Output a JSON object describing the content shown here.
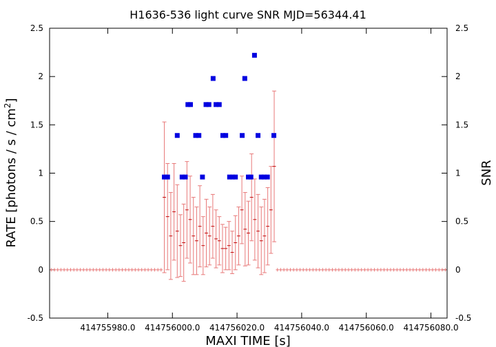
{
  "chart_data": {
    "type": "scatter",
    "title": "H1636-536 light curve  SNR MJD=56344.41",
    "xlabel": "MAXI TIME [s]",
    "ylabel": "RATE [photons / s / cm",
    "ylabel_sup": "2",
    "ylabel_end": "]",
    "y2label": "SNR",
    "xlim": [
      414755962,
      414756085
    ],
    "ylim": [
      -0.5,
      2.5
    ],
    "y2lim": [
      -0.5,
      2.5
    ],
    "x_ticks": [
      414755980,
      414756000,
      414756020,
      414756040,
      414756060,
      414756080
    ],
    "x_tick_labels": [
      "414755980.0",
      "414756000.0",
      "414756020.0",
      "414756040.0",
      "414756060.0",
      "414756080.0"
    ],
    "y_ticks": [
      -0.5,
      0,
      0.5,
      1,
      1.5,
      2,
      2.5
    ],
    "y_tick_labels": [
      "-0.5",
      "0",
      "0.5",
      "1",
      "1.5",
      "2",
      "2.5"
    ],
    "grid": false,
    "colors": {
      "rate": "#c00000",
      "rate_error": "#e87878",
      "snr": "#0000e0"
    },
    "series": [
      {
        "x": [
          414755997.5,
          414755998.5,
          414755999.5,
          414756000.5,
          414756001.5,
          414756002.5,
          414756003.5,
          414756004.5,
          414756005.5,
          414756006.5,
          414756007.5,
          414756008.5,
          414756009.5,
          414756010.5,
          414756011.5,
          414756012.5,
          414756013.5,
          414756014.5,
          414756015.5,
          414756016.5,
          414756017.5,
          414756018.5,
          414756019.5,
          414756020.5,
          414756021.5,
          414756022.5,
          414756023.5,
          414756024.5,
          414756025.5,
          414756026.5,
          414756027.5,
          414756028.5,
          414756029.5,
          414756030.5,
          414756031.5
        ],
        "y": [
          0.75,
          0.55,
          0.35,
          0.6,
          0.4,
          0.25,
          0.28,
          0.62,
          0.52,
          0.35,
          0.3,
          0.45,
          0.25,
          0.38,
          0.35,
          0.45,
          0.32,
          0.3,
          0.22,
          0.22,
          0.25,
          0.18,
          0.28,
          0.35,
          0.62,
          0.42,
          0.38,
          0.75,
          0.52,
          0.4,
          0.3,
          0.35,
          0.45,
          0.62,
          1.07
        ],
        "err": [
          0.78,
          0.55,
          0.45,
          0.5,
          0.48,
          0.32,
          0.4,
          0.5,
          0.45,
          0.4,
          0.35,
          0.42,
          0.3,
          0.35,
          0.3,
          0.33,
          0.3,
          0.25,
          0.25,
          0.22,
          0.25,
          0.22,
          0.28,
          0.3,
          0.35,
          0.38,
          0.33,
          0.45,
          0.42,
          0.38,
          0.35,
          0.38,
          0.4,
          0.45,
          0.78
        ]
      },
      {
        "x": [
          414755997.5,
          414755998.5,
          414756001.5,
          414756003.0,
          414756004.0,
          414756004.8,
          414756005.6,
          414756007.2,
          414756008.2,
          414756009.3,
          414756010.4,
          414756011.3,
          414756012.6,
          414756013.5,
          414756014.5,
          414756015.6,
          414756016.5,
          414756017.7,
          414756018.6,
          414756019.5,
          414756021.6,
          414756022.4,
          414756023.5,
          414756024.3,
          414756025.4,
          414756026.5,
          414756027.5,
          414756028.4,
          414756029.4,
          414756031.4
        ],
        "y": [
          0.96,
          0.96,
          1.39,
          0.96,
          0.96,
          1.71,
          1.71,
          1.39,
          1.39,
          0.96,
          1.71,
          1.71,
          1.98,
          1.71,
          1.71,
          1.39,
          1.39,
          0.96,
          0.96,
          0.96,
          1.39,
          1.98,
          0.96,
          0.96,
          2.22,
          1.39,
          0.96,
          0.96,
          0.96,
          1.39
        ]
      }
    ]
  }
}
